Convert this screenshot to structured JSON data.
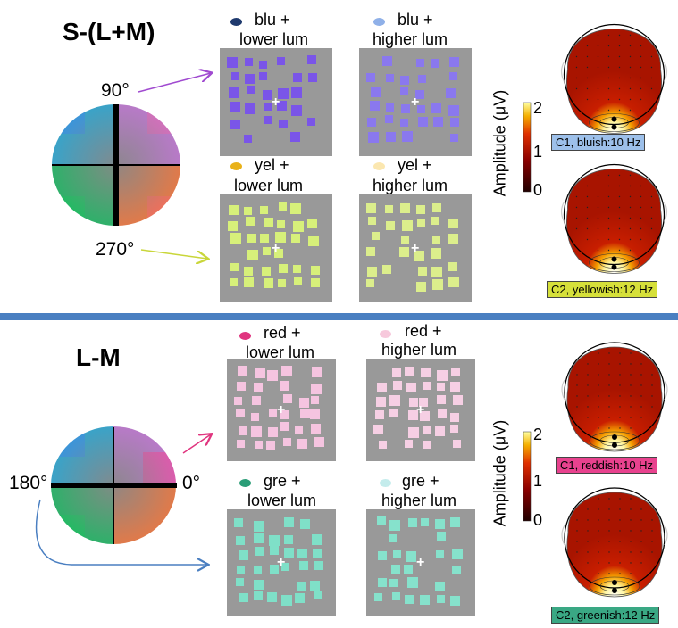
{
  "sections": [
    {
      "title": "S-(L+M)",
      "angles": [
        "90°",
        "270°"
      ],
      "conditions": [
        {
          "label_line1": "blu +",
          "label_line2": "lower lum",
          "dot_color": "#1f3a6e",
          "square_color": "#7a55e8"
        },
        {
          "label_line1": "blu +",
          "label_line2": "higher lum",
          "dot_color": "#8fb0e8",
          "square_color": "#8a78ee"
        },
        {
          "label_line1": "yel +",
          "label_line2": "lower lum",
          "dot_color": "#e9b21a",
          "square_color": "#d7f07a"
        },
        {
          "label_line1": "yel +",
          "label_line2": "higher lum",
          "dot_color": "#fbe7b0",
          "square_color": "#dcee8c"
        }
      ],
      "colorbar": {
        "label": "Amplitude (μV)",
        "ticks": [
          "2",
          "1",
          "0"
        ]
      },
      "topomaps": [
        {
          "caption": "C1, bluish:10 Hz",
          "caption_color": "#9dc0ea"
        },
        {
          "caption": "C2, yellowish:12 Hz",
          "caption_color": "#d6e03a"
        }
      ]
    },
    {
      "title": "L-M",
      "angles": [
        "180°",
        "0°"
      ],
      "conditions": [
        {
          "label_line1": "red +",
          "label_line2": "lower lum",
          "dot_color": "#e0357f",
          "square_color": "#f5c4e0"
        },
        {
          "label_line1": "red +",
          "label_line2": "higher lum",
          "dot_color": "#f7c9dc",
          "square_color": "#f6cfe4"
        },
        {
          "label_line1": "gre +",
          "label_line2": "lower lum",
          "dot_color": "#2a9d77",
          "square_color": "#7fe0c8"
        },
        {
          "label_line1": "gre +",
          "label_line2": "higher lum",
          "dot_color": "#c4ecec",
          "square_color": "#86e2cc"
        }
      ],
      "colorbar": {
        "label": "Amplitude (μV)",
        "ticks": [
          "2",
          "1",
          "0"
        ]
      },
      "topomaps": [
        {
          "caption": "C1, reddish:10 Hz",
          "caption_color": "#e8428e"
        },
        {
          "caption": "C2, greenish:12 Hz",
          "caption_color": "#3aa884"
        }
      ]
    }
  ],
  "colors": {
    "divider": "#4a7fc1",
    "panel_bg": "#999999",
    "arrow_purple": "#a04ad0",
    "arrow_yellow": "#c9d63a",
    "arrow_pink": "#e0357f",
    "arrow_blue": "#4a7fc1"
  }
}
